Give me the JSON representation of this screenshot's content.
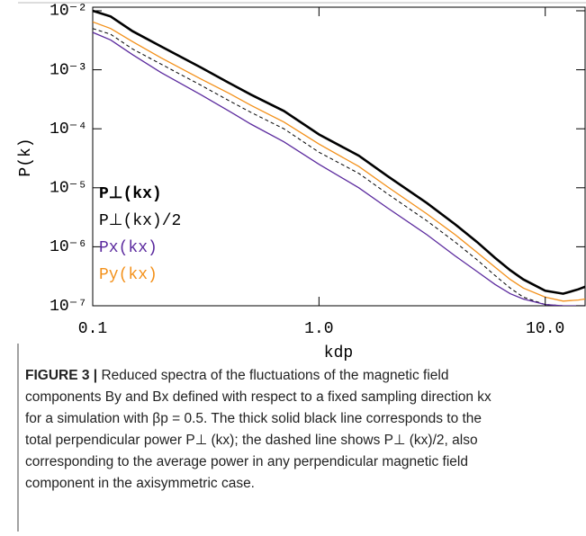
{
  "chart_data": {
    "type": "line",
    "xlabel": "kdp",
    "ylabel": "P(k)",
    "xscale": "log",
    "yscale": "log",
    "xlim": [
      0.1,
      15
    ],
    "ylim": [
      1e-07,
      0.0115
    ],
    "xticks": [
      0.1,
      {
        "value": 1,
        "label": "1.0"
      },
      {
        "value": 10,
        "label": "10.0"
      }
    ],
    "yticks": [
      {
        "value": 1e-07,
        "label": "10⁻⁷"
      },
      {
        "value": 1e-06,
        "label": "10⁻⁶"
      },
      {
        "value": 1e-05,
        "label": "10⁻⁵"
      },
      {
        "value": 0.0001,
        "label": "10⁻⁴"
      },
      {
        "value": 0.001,
        "label": "10⁻³"
      },
      {
        "value": 0.01,
        "label": "10⁻²"
      }
    ],
    "x": [
      0.1,
      0.12,
      0.15,
      0.2,
      0.3,
      0.4,
      0.5,
      0.7,
      1.0,
      1.5,
      2,
      3,
      4,
      5,
      6,
      7,
      8,
      10,
      12,
      14,
      15
    ],
    "series": [
      {
        "name": "P⊥(kx)",
        "color": "#000000",
        "style": "thick",
        "values": [
          0.01,
          0.008,
          0.0045,
          0.0025,
          0.0011,
          0.0006,
          0.00038,
          0.0002,
          8e-05,
          3.5e-05,
          1.6e-05,
          5.5e-06,
          2.4e-06,
          1.2e-06,
          6.5e-07,
          4e-07,
          2.8e-07,
          1.8e-07,
          1.6e-07,
          1.9e-07,
          2.1e-07
        ]
      },
      {
        "name": "P⊥(kx)/2",
        "color": "#000000",
        "style": "dashed",
        "values": [
          0.005,
          0.004,
          0.00225,
          0.00125,
          0.00055,
          0.0003,
          0.00019,
          0.0001,
          4e-05,
          1.75e-05,
          8e-06,
          2.75e-06,
          1.2e-06,
          6e-07,
          3.25e-07,
          2e-07,
          1.4e-07,
          1.05e-07,
          1e-07,
          1e-07,
          1e-07
        ]
      },
      {
        "name": "Px(kx)",
        "color": "#5b2a9e",
        "style": "thin",
        "values": [
          0.0043,
          0.0032,
          0.0018,
          0.0009,
          0.00038,
          0.0002,
          0.00012,
          6e-05,
          2.5e-05,
          1e-05,
          4.6e-06,
          1.6e-06,
          7e-07,
          3.8e-07,
          2.3e-07,
          1.6e-07,
          1.3e-07,
          1.05e-07,
          1e-07,
          1e-07,
          1e-07
        ]
      },
      {
        "name": "Py(kx)",
        "color": "#f39019",
        "style": "thin",
        "values": [
          0.0065,
          0.005,
          0.003,
          0.0016,
          0.0007,
          0.0004,
          0.00025,
          0.00013,
          5.5e-05,
          2.3e-05,
          1.05e-05,
          3.6e-06,
          1.6e-06,
          8e-07,
          4.5e-07,
          2.8e-07,
          2e-07,
          1.4e-07,
          1.2e-07,
          1.25e-07,
          1.3e-07
        ]
      }
    ]
  },
  "caption": {
    "label": "FIGURE 3 |",
    "lines": [
      " Reduced spectra of the fluctuations of the magnetic field",
      "components By and Bx defined with respect to a fixed sampling direction kx",
      "for a simulation with βp = 0.5. The thick solid black line corresponds to the",
      "total perpendicular power P⊥ (kx); the dashed line shows P⊥ (kx)/2, also",
      "corresponding to the average power in any perpendicular magnetic field",
      "component in the axisymmetric case."
    ]
  }
}
